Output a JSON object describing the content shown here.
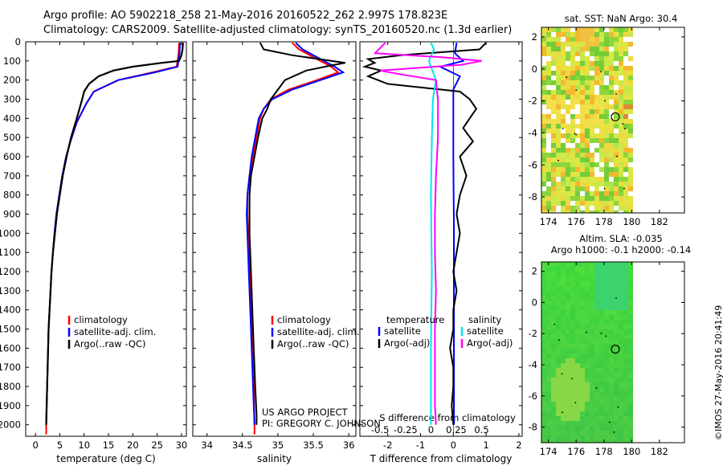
{
  "header": {
    "line1": "Argo profile: AO 5902218_258 21-May-2016 20160522_262 2.997S 178.823E",
    "line2": "Climatology: CARS2009. Satellite-adjusted climatology: synTS_20160520.nc (1.3d earlier)"
  },
  "stamp": "©IMOS 27-May-2016 20:41:49",
  "chart_data": [
    {
      "id": "temperature",
      "type": "line",
      "xlabel": "temperature (deg C)",
      "xlim": [
        -2,
        31
      ],
      "xticks": [
        0,
        5,
        10,
        15,
        20,
        25,
        30
      ],
      "ylim": [
        0,
        2060
      ],
      "yticks": [
        0,
        100,
        200,
        300,
        400,
        500,
        600,
        700,
        800,
        900,
        1000,
        1100,
        1200,
        1300,
        1400,
        1500,
        1600,
        1700,
        1800,
        1900,
        2000
      ],
      "legend": [
        "climatology",
        "satellite-adj. clim.",
        "Argo(..raw -QC)"
      ],
      "legend_position": "lower-right",
      "series": [
        {
          "name": "climatology",
          "color": "#ff0000",
          "points": [
            [
              29.5,
              5
            ],
            [
              29.4,
              60
            ],
            [
              29,
              130
            ],
            [
              24,
              160
            ],
            [
              17,
              200
            ],
            [
              12,
              260
            ],
            [
              10.5,
              320
            ],
            [
              8.5,
              420
            ],
            [
              7.2,
              520
            ],
            [
              6.3,
              600
            ],
            [
              5.5,
              700
            ],
            [
              4.9,
              800
            ],
            [
              4.3,
              900
            ],
            [
              3.9,
              1000
            ],
            [
              3.6,
              1100
            ],
            [
              3.3,
              1200
            ],
            [
              3.1,
              1300
            ],
            [
              2.9,
              1400
            ],
            [
              2.7,
              1500
            ],
            [
              2.6,
              1600
            ],
            [
              2.5,
              1700
            ],
            [
              2.4,
              1800
            ],
            [
              2.3,
              1900
            ],
            [
              2.2,
              2000
            ],
            [
              2.2,
              2050
            ]
          ]
        },
        {
          "name": "satellite-adj. clim.",
          "color": "#0000ff",
          "points": [
            [
              29.7,
              5
            ],
            [
              29.6,
              60
            ],
            [
              29.2,
              130
            ],
            [
              24.5,
              160
            ],
            [
              17,
              200
            ],
            [
              12,
              260
            ],
            [
              10.5,
              320
            ],
            [
              8.5,
              420
            ],
            [
              7.2,
              520
            ],
            [
              6.3,
              600
            ],
            [
              5.5,
              700
            ],
            [
              4.9,
              800
            ],
            [
              4.3,
              900
            ],
            [
              3.9,
              1000
            ],
            [
              3.6,
              1100
            ],
            [
              3.3,
              1200
            ],
            [
              3.1,
              1300
            ],
            [
              2.9,
              1400
            ],
            [
              2.7,
              1500
            ],
            [
              2.6,
              1600
            ],
            [
              2.5,
              1700
            ],
            [
              2.4,
              1800
            ],
            [
              2.3,
              1900
            ],
            [
              2.2,
              2000
            ]
          ]
        },
        {
          "name": "Argo(..raw -QC)",
          "color": "#000000",
          "points": [
            [
              30.3,
              5
            ],
            [
              30.2,
              40
            ],
            [
              30,
              70
            ],
            [
              29.5,
              100
            ],
            [
              26,
              110
            ],
            [
              20,
              130
            ],
            [
              16,
              150
            ],
            [
              13,
              180
            ],
            [
              11,
              220
            ],
            [
              10,
              260
            ],
            [
              9.6,
              300
            ],
            [
              8.5,
              400
            ],
            [
              7.3,
              500
            ],
            [
              6.4,
              600
            ],
            [
              5.6,
              700
            ],
            [
              5,
              800
            ],
            [
              4.4,
              900
            ],
            [
              4,
              1000
            ],
            [
              3.6,
              1100
            ],
            [
              3.3,
              1200
            ],
            [
              3.1,
              1300
            ],
            [
              2.9,
              1400
            ],
            [
              2.7,
              1500
            ],
            [
              2.6,
              1600
            ],
            [
              2.5,
              1700
            ],
            [
              2.4,
              1800
            ],
            [
              2.3,
              1900
            ],
            [
              2.2,
              2000
            ]
          ]
        }
      ]
    },
    {
      "id": "salinity",
      "type": "line",
      "xlabel": "salinity",
      "xlim": [
        33.8,
        36.1
      ],
      "xticks": [
        34,
        34.5,
        35,
        35.5,
        36
      ],
      "xtick_labels": [
        "34",
        "34.5",
        "35",
        "35.5",
        "36"
      ],
      "ylim": [
        0,
        2060
      ],
      "legend": [
        "climatology",
        "satellite-adj. clim.",
        "Argo(..raw -QC)"
      ],
      "legend_position": "lower-right",
      "annotations": [
        "US ARGO PROJECT",
        "PI: GREGORY C. JOHNSON"
      ],
      "series": [
        {
          "name": "climatology",
          "color": "#ff0000",
          "points": [
            [
              35.2,
              5
            ],
            [
              35.3,
              40
            ],
            [
              35.55,
              90
            ],
            [
              35.75,
              130
            ],
            [
              35.85,
              160
            ],
            [
              35.55,
              200
            ],
            [
              35.15,
              250
            ],
            [
              34.9,
              300
            ],
            [
              34.8,
              350
            ],
            [
              34.75,
              400
            ],
            [
              34.7,
              500
            ],
            [
              34.65,
              600
            ],
            [
              34.6,
              700
            ],
            [
              34.57,
              800
            ],
            [
              34.57,
              900
            ],
            [
              34.58,
              1000
            ],
            [
              34.6,
              1200
            ],
            [
              34.62,
              1400
            ],
            [
              34.64,
              1600
            ],
            [
              34.66,
              1800
            ],
            [
              34.67,
              2000
            ],
            [
              34.67,
              2050
            ]
          ]
        },
        {
          "name": "satellite-adj. clim.",
          "color": "#0000ff",
          "points": [
            [
              35.25,
              5
            ],
            [
              35.35,
              40
            ],
            [
              35.6,
              90
            ],
            [
              35.8,
              130
            ],
            [
              35.92,
              160
            ],
            [
              35.6,
              200
            ],
            [
              35.2,
              250
            ],
            [
              34.92,
              300
            ],
            [
              34.8,
              350
            ],
            [
              34.73,
              400
            ],
            [
              34.68,
              500
            ],
            [
              34.63,
              600
            ],
            [
              34.6,
              700
            ],
            [
              34.57,
              800
            ],
            [
              34.56,
              900
            ],
            [
              34.57,
              1000
            ],
            [
              34.59,
              1200
            ],
            [
              34.61,
              1400
            ],
            [
              34.63,
              1600
            ],
            [
              34.65,
              1800
            ],
            [
              34.67,
              2000
            ]
          ]
        },
        {
          "name": "Argo(..raw -QC)",
          "color": "#000000",
          "points": [
            [
              34.75,
              5
            ],
            [
              34.8,
              40
            ],
            [
              35.2,
              70
            ],
            [
              35.95,
              110
            ],
            [
              35.8,
              120
            ],
            [
              35.4,
              150
            ],
            [
              35.1,
              200
            ],
            [
              35,
              250
            ],
            [
              34.9,
              300
            ],
            [
              34.85,
              350
            ],
            [
              34.78,
              400
            ],
            [
              34.72,
              500
            ],
            [
              34.67,
              600
            ],
            [
              34.62,
              700
            ],
            [
              34.6,
              800
            ],
            [
              34.6,
              900
            ],
            [
              34.6,
              1000
            ],
            [
              34.62,
              1200
            ],
            [
              34.64,
              1400
            ],
            [
              34.66,
              1600
            ],
            [
              34.68,
              1800
            ],
            [
              34.7,
              1950
            ],
            [
              34.7,
              2000
            ]
          ]
        }
      ]
    },
    {
      "id": "difference",
      "type": "line",
      "xlabel_top": "S difference from climatology",
      "xlabel": "T difference from climatology",
      "xlim_T": [
        -2.85,
        2.1
      ],
      "xticks_T": [
        -2,
        -1,
        0,
        1,
        2
      ],
      "xlim_S": [
        -0.7,
        0.9
      ],
      "xticks_S": [
        -0.5,
        -0.25,
        0,
        0.25,
        0.5
      ],
      "xtick_labels_S": [
        "-0.5",
        "-0.25",
        "0",
        "0.25",
        "0.5"
      ],
      "ylim": [
        0,
        2060
      ],
      "legend_groups": [
        "temperature",
        "salinity"
      ],
      "legend": [
        "satellite",
        "Argo(-adj)",
        "satellite",
        "Argo(-adj)"
      ],
      "legend_position": "lower-right",
      "series": [
        {
          "name": "temperature satellite",
          "axis": "T",
          "color": "#0000ff",
          "points": [
            [
              0.1,
              5
            ],
            [
              0.05,
              60
            ],
            [
              0.3,
              100
            ],
            [
              -0.4,
              130
            ],
            [
              0.2,
              180
            ],
            [
              0,
              250
            ],
            [
              0,
              400
            ],
            [
              0,
              600
            ],
            [
              0.02,
              1000
            ],
            [
              0.02,
              1500
            ],
            [
              0.02,
              2000
            ]
          ]
        },
        {
          "name": "temperature Argo(-adj)",
          "axis": "T",
          "color": "#000000",
          "points": [
            [
              1,
              5
            ],
            [
              0.8,
              40
            ],
            [
              -1.6,
              70
            ],
            [
              -2.6,
              90
            ],
            [
              -2.4,
              110
            ],
            [
              -2.7,
              130
            ],
            [
              -2.2,
              150
            ],
            [
              -2.6,
              180
            ],
            [
              -2,
              220
            ],
            [
              0.2,
              260
            ],
            [
              0.5,
              300
            ],
            [
              0.7,
              350
            ],
            [
              0.5,
              400
            ],
            [
              0.3,
              450
            ],
            [
              0.6,
              520
            ],
            [
              0.2,
              600
            ],
            [
              0.4,
              700
            ],
            [
              0.2,
              800
            ],
            [
              0.1,
              900
            ],
            [
              0.2,
              1000
            ],
            [
              0.1,
              1100
            ],
            [
              0,
              1200
            ],
            [
              0.1,
              1300
            ],
            [
              0,
              1400
            ],
            [
              0,
              1500
            ],
            [
              -0.1,
              1600
            ],
            [
              0,
              1700
            ],
            [
              0,
              1800
            ],
            [
              -0.05,
              1900
            ],
            [
              0,
              2000
            ]
          ]
        },
        {
          "name": "salinity satellite",
          "axis": "S",
          "color": "#00e5ee",
          "points": [
            [
              0,
              5
            ],
            [
              0.03,
              40
            ],
            [
              -0.02,
              100
            ],
            [
              0.05,
              200
            ],
            [
              0.02,
              300
            ],
            [
              0.01,
              500
            ],
            [
              0,
              800
            ],
            [
              0.01,
              1200
            ],
            [
              0,
              1600
            ],
            [
              0,
              2000
            ]
          ]
        },
        {
          "name": "salinity Argo(-adj)",
          "axis": "S",
          "color": "#ff00ff",
          "points": [
            [
              -0.45,
              5
            ],
            [
              -0.55,
              60
            ],
            [
              0.1,
              80
            ],
            [
              0.5,
              100
            ],
            [
              0.3,
              120
            ],
            [
              -0.5,
              150
            ],
            [
              -0.3,
              170
            ],
            [
              0.05,
              200
            ],
            [
              0.07,
              300
            ],
            [
              0.07,
              500
            ],
            [
              0.05,
              700
            ],
            [
              0.04,
              900
            ],
            [
              0.04,
              1100
            ],
            [
              0.05,
              1300
            ],
            [
              0.04,
              1500
            ],
            [
              0.04,
              1700
            ],
            [
              0.04,
              1900
            ],
            [
              0.05,
              2000
            ]
          ]
        }
      ]
    },
    {
      "id": "sst-map",
      "type": "heatmap",
      "title": "sat. SST: NaN Argo: 30.4",
      "xlim": [
        173.5,
        183.8
      ],
      "xticks": [
        174,
        176,
        178,
        180,
        182
      ],
      "ylim": [
        -9,
        2.6
      ],
      "yticks": [
        2,
        0,
        -2,
        -4,
        -6,
        -8
      ],
      "marker": {
        "lon": 178.823,
        "lat": -2.997
      }
    },
    {
      "id": "sla-map",
      "type": "heatmap",
      "title": "Altim. SLA: -0.035",
      "subtitle": "Argo h1000: -0.1 h2000: -0.14",
      "xlim": [
        173.5,
        183.8
      ],
      "xticks": [
        174,
        176,
        178,
        180,
        182
      ],
      "ylim": [
        -9,
        2.6
      ],
      "yticks": [
        2,
        0,
        -2,
        -4,
        -6,
        -8
      ],
      "marker": {
        "lon": 178.823,
        "lat": -2.997
      }
    }
  ]
}
